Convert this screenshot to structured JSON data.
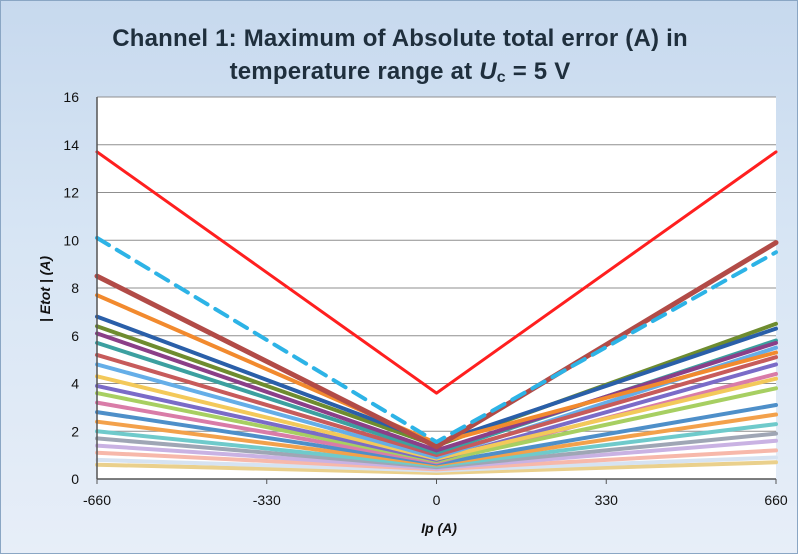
{
  "title": {
    "line1": "Channel 1: Maximum of Absolute total error (A) in",
    "line2_prefix": "temperature range at ",
    "line2_var": "U",
    "line2_sub": "c",
    "line2_suffix": " = 5 V"
  },
  "chart_data": {
    "type": "line",
    "title": "Channel 1: Maximum of Absolute total error (A) in temperature range at Uc = 5 V",
    "xlabel": "Ip (A)",
    "ylabel": "| Etot | (A)",
    "xlim": [
      -660,
      660
    ],
    "ylim": [
      0,
      16
    ],
    "x_ticks": [
      -660,
      -330,
      0,
      330,
      660
    ],
    "y_ticks": [
      0,
      2,
      4,
      6,
      8,
      10,
      12,
      14,
      16
    ],
    "grid": "horizontal",
    "series": [
      {
        "style": "solid",
        "color": "#ff1f1f",
        "width": 3,
        "points": [
          [
            -660,
            13.7
          ],
          [
            0,
            3.6
          ],
          [
            660,
            13.7
          ]
        ]
      },
      {
        "style": "dashed",
        "color": "#2db3e6",
        "width": 4,
        "points": [
          [
            -660,
            10.1
          ],
          [
            0,
            1.55
          ],
          [
            660,
            9.5
          ]
        ]
      },
      {
        "style": "solid",
        "color": "#b24b47",
        "width": 5,
        "points": [
          [
            -660,
            8.5
          ],
          [
            0,
            1.35
          ],
          [
            660,
            9.9
          ]
        ]
      },
      {
        "style": "solid",
        "color": "#f28a2e",
        "width": 4,
        "points": [
          [
            -660,
            7.7
          ],
          [
            0,
            1.5
          ],
          [
            660,
            5.3
          ]
        ]
      },
      {
        "style": "solid",
        "color": "#2a5fa9",
        "width": 4,
        "points": [
          [
            -660,
            6.8
          ],
          [
            0,
            1.5
          ],
          [
            660,
            6.3
          ]
        ]
      },
      {
        "style": "solid",
        "color": "#6e8c2f",
        "width": 4,
        "points": [
          [
            -660,
            6.4
          ],
          [
            0,
            1.4
          ],
          [
            660,
            6.5
          ]
        ]
      },
      {
        "style": "solid",
        "color": "#8b3f88",
        "width": 4,
        "points": [
          [
            -660,
            6.1
          ],
          [
            0,
            1.2
          ],
          [
            660,
            5.7
          ]
        ]
      },
      {
        "style": "solid",
        "color": "#3ca0a0",
        "width": 4,
        "points": [
          [
            -660,
            5.7
          ],
          [
            0,
            1.1
          ],
          [
            660,
            5.8
          ]
        ]
      },
      {
        "style": "solid",
        "color": "#c75b5b",
        "width": 4,
        "points": [
          [
            -660,
            5.2
          ],
          [
            0,
            1.0
          ],
          [
            660,
            5.1
          ]
        ]
      },
      {
        "style": "solid",
        "color": "#65aee8",
        "width": 4,
        "points": [
          [
            -660,
            4.8
          ],
          [
            0,
            0.9
          ],
          [
            660,
            5.5
          ]
        ]
      },
      {
        "style": "solid",
        "color": "#f3c95a",
        "width": 4,
        "points": [
          [
            -660,
            4.3
          ],
          [
            0,
            0.85
          ],
          [
            660,
            4.2
          ]
        ]
      },
      {
        "style": "solid",
        "color": "#7a6bc8",
        "width": 4,
        "points": [
          [
            -660,
            3.9
          ],
          [
            0,
            0.8
          ],
          [
            660,
            4.8
          ]
        ]
      },
      {
        "style": "solid",
        "color": "#a7cf62",
        "width": 4,
        "points": [
          [
            -660,
            3.6
          ],
          [
            0,
            0.75
          ],
          [
            660,
            3.8
          ]
        ]
      },
      {
        "style": "solid",
        "color": "#d97ca8",
        "width": 4,
        "points": [
          [
            -660,
            3.2
          ],
          [
            0,
            0.7
          ],
          [
            660,
            4.4
          ]
        ]
      },
      {
        "style": "solid",
        "color": "#4e8fc9",
        "width": 4,
        "points": [
          [
            -660,
            2.8
          ],
          [
            0,
            0.65
          ],
          [
            660,
            3.1
          ]
        ]
      },
      {
        "style": "solid",
        "color": "#f3a14b",
        "width": 4,
        "points": [
          [
            -660,
            2.4
          ],
          [
            0,
            0.6
          ],
          [
            660,
            2.7
          ]
        ]
      },
      {
        "style": "solid",
        "color": "#6fcacb",
        "width": 4,
        "points": [
          [
            -660,
            2.0
          ],
          [
            0,
            0.55
          ],
          [
            660,
            2.3
          ]
        ]
      },
      {
        "style": "solid",
        "color": "#9fa6b5",
        "width": 4,
        "points": [
          [
            -660,
            1.7
          ],
          [
            0,
            0.5
          ],
          [
            660,
            1.9
          ]
        ]
      },
      {
        "style": "solid",
        "color": "#c9b2e3",
        "width": 4,
        "points": [
          [
            -660,
            1.4
          ],
          [
            0,
            0.45
          ],
          [
            660,
            1.6
          ]
        ]
      },
      {
        "style": "solid",
        "color": "#f7b8aa",
        "width": 4,
        "points": [
          [
            -660,
            1.1
          ],
          [
            0,
            0.4
          ],
          [
            660,
            1.2
          ]
        ]
      },
      {
        "style": "solid",
        "color": "#d6e3f2",
        "width": 4,
        "points": [
          [
            -660,
            0.8
          ],
          [
            0,
            0.35
          ],
          [
            660,
            0.9
          ]
        ]
      },
      {
        "style": "solid",
        "color": "#ead08c",
        "width": 4,
        "points": [
          [
            -660,
            0.6
          ],
          [
            0,
            0.25
          ],
          [
            660,
            0.7
          ]
        ]
      }
    ]
  }
}
